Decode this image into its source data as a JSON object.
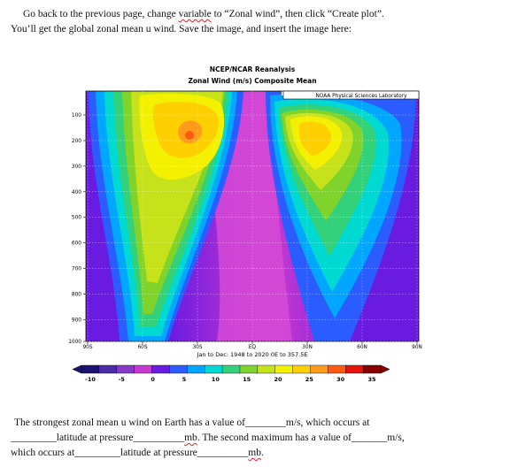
{
  "instructions": {
    "line1_before": "Go back to the previous page, change ",
    "line1_link": "variable",
    "line1_after": " to “Zonal wind”, then click “Create plot”.",
    "line2": "You’ll get the global zonal mean u wind. Save the image, and insert the image here:"
  },
  "figure": {
    "title1": "NCEP/NCAR Reanalysis",
    "title2": "Zonal Wind (m/s) Composite Mean",
    "credit": "NOAA Physical Sciences Laboratory",
    "date_range": "Jan to Dec: 1948 to 2020 0E to 357.5E",
    "y_ticks": [
      "100",
      "200",
      "300",
      "400",
      "500",
      "600",
      "700",
      "800",
      "900",
      "1000"
    ],
    "x_ticks": [
      "90S",
      "60S",
      "30S",
      "EQ",
      "30N",
      "60N",
      "90N"
    ],
    "cbar_ticks": [
      "-10",
      "-5",
      "0",
      "5",
      "10",
      "15",
      "20",
      "25",
      "30",
      "35"
    ],
    "cbar_colors": [
      "#1a1470",
      "#4b2ca8",
      "#8a38c9",
      "#c63ad0",
      "#6a1be0",
      "#2a5cff",
      "#00a6ff",
      "#00d8d2",
      "#33d17a",
      "#7fd32b",
      "#c6e21a",
      "#f4f100",
      "#ffd000",
      "#ff9a1a",
      "#ff5a12",
      "#e2140c",
      "#8a0000"
    ],
    "colors": {
      "background": "#6a1be0",
      "equator": "#c63ad0",
      "accent_link": "#d8232a"
    }
  },
  "question": {
    "l1a": "The strongest zonal mean u wind on Earth has a value of",
    "l1b": "m/s, which occurs at",
    "l2a": "latitude at pressure",
    "l2b": "mb",
    "l2c": ". The second maximum has a value of",
    "l2d": "m/s,",
    "l3a": "which occurs at",
    "l3b": "latitude at pressure",
    "l3c": "mb",
    "l3d": "."
  }
}
